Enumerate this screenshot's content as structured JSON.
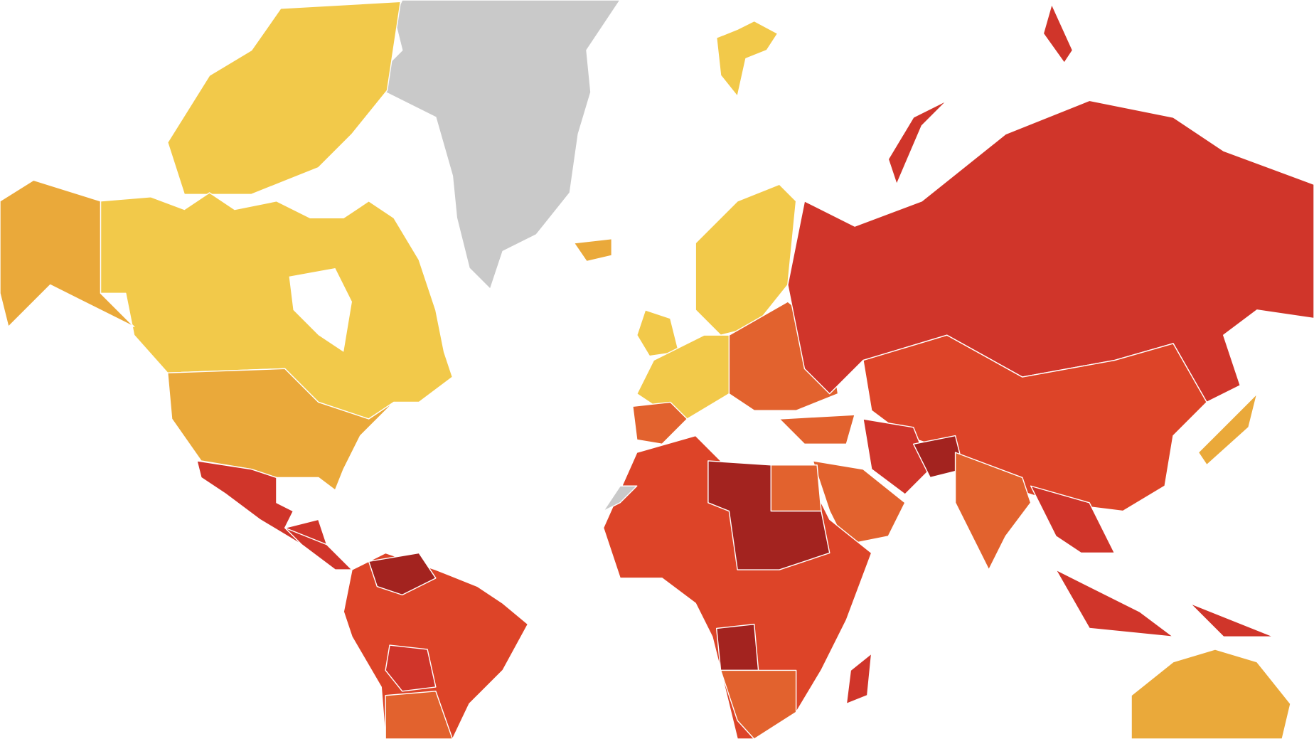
{
  "map": {
    "background": "#ffffff",
    "border": "#ffffff",
    "colors": [
      "#f2c94a",
      "#eaa93a",
      "#e2622e",
      "#dd4428",
      "#d0352a",
      "#a3231f",
      "#c9c9c9"
    ]
  }
}
